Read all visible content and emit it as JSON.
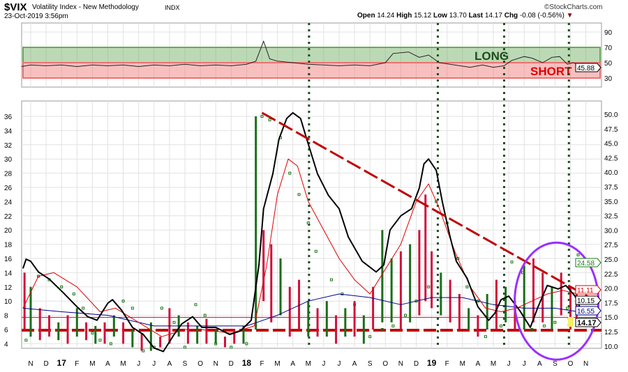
{
  "header": {
    "symbol": "$VIX",
    "name": "Volatility Index - New Methodology",
    "exchange": "INDX",
    "date": "23-Oct-2019 3:56pm",
    "brand": "©StockCharts.com",
    "quote": {
      "open_label": "Open",
      "open": "14.24",
      "high_label": "High",
      "high": "15.12",
      "low_label": "Low",
      "low": "13.70",
      "last_label": "Last",
      "last": "14.17",
      "chg_label": "Chg",
      "chg": "-0.08 (-0.56%)"
    },
    "colors": {
      "down": "#8b0000"
    }
  },
  "chart_data": [
    {
      "type": "line",
      "title": "Indicator panel",
      "yticks": [
        "90",
        "70",
        "50",
        "30"
      ],
      "ylim": [
        25,
        100
      ],
      "bands": [
        {
          "label": "LONG",
          "from": 50,
          "to": 70,
          "color": "#6aaa5a"
        },
        {
          "label": "SHORT",
          "from": 30,
          "to": 50,
          "color": "#f07070"
        }
      ],
      "last_label": "45.88",
      "series": [
        [
          -0.6,
          45
        ],
        [
          0,
          47
        ],
        [
          1,
          46
        ],
        [
          2,
          47
        ],
        [
          3,
          45
        ],
        [
          4,
          47
        ],
        [
          5,
          46
        ],
        [
          6,
          47
        ],
        [
          7,
          45
        ],
        [
          8,
          47
        ],
        [
          9,
          46
        ],
        [
          10,
          48
        ],
        [
          11,
          46
        ],
        [
          12,
          47
        ],
        [
          13,
          46
        ],
        [
          14,
          48
        ],
        [
          14.6,
          52
        ],
        [
          15.1,
          78
        ],
        [
          15.5,
          55
        ],
        [
          16,
          52
        ],
        [
          17,
          50
        ],
        [
          18,
          48
        ],
        [
          19,
          47
        ],
        [
          20,
          46
        ],
        [
          21,
          47
        ],
        [
          22,
          46
        ],
        [
          23,
          50
        ],
        [
          23.5,
          62
        ],
        [
          24.5,
          64
        ],
        [
          25.2,
          57
        ],
        [
          25.8,
          60
        ],
        [
          26.5,
          50
        ],
        [
          27.5,
          47
        ],
        [
          28.5,
          44
        ],
        [
          29.3,
          47
        ],
        [
          30,
          44
        ],
        [
          30.7,
          46
        ],
        [
          31.2,
          53
        ],
        [
          32,
          58
        ],
        [
          32.5,
          56
        ],
        [
          33.2,
          50
        ],
        [
          33.8,
          57
        ],
        [
          34.3,
          58
        ],
        [
          34.8,
          48
        ],
        [
          35.2,
          50
        ],
        [
          35.6,
          46
        ]
      ]
    },
    {
      "type": "line",
      "title": "$VIX price with moving averages and parabolic SAR",
      "x_ticks": [
        "N",
        "D",
        "17",
        "F",
        "M",
        "A",
        "M",
        "J",
        "J",
        "A",
        "S",
        "O",
        "N",
        "D",
        "18",
        "F",
        "M",
        "A",
        "M",
        "J",
        "J",
        "A",
        "S",
        "O",
        "N",
        "D",
        "19",
        "F",
        "M",
        "A",
        "M",
        "J",
        "J",
        "A",
        "S",
        "O",
        "N"
      ],
      "yticks_left": [
        "36",
        "34",
        "32",
        "30",
        "28",
        "26",
        "24",
        "22",
        "20",
        "18",
        "16",
        "14",
        "12",
        "10",
        "8",
        "6",
        "4"
      ],
      "yticks_right": [
        "50.0",
        "47.5",
        "45.0",
        "42.5",
        "40.0",
        "37.5",
        "35.0",
        "32.5",
        "30.0",
        "27.5",
        "25.0",
        "22.5",
        "20.0",
        "17.5",
        "15.0",
        "12.5",
        "10.0"
      ],
      "ylim_left": [
        3,
        37
      ],
      "vlines": [
        18.05,
        26.4,
        30.7,
        34.9
      ],
      "price": [
        [
          -0.5,
          14.6
        ],
        [
          -0.3,
          15.9
        ],
        [
          0,
          15.6
        ],
        [
          0.5,
          14.1
        ],
        [
          1.2,
          13.1
        ],
        [
          2.1,
          11.2
        ],
        [
          3,
          9.2
        ],
        [
          3.7,
          7.8
        ],
        [
          4.3,
          7.3
        ],
        [
          5,
          9.7
        ],
        [
          5.3,
          10.2
        ],
        [
          5.9,
          8.7
        ],
        [
          6.6,
          6.3
        ],
        [
          7.3,
          5.3
        ],
        [
          8,
          3.4
        ],
        [
          8.6,
          2.9
        ],
        [
          9.3,
          5.3
        ],
        [
          9.8,
          6.8
        ],
        [
          10.5,
          7.8
        ],
        [
          11.1,
          6.3
        ],
        [
          12,
          6.3
        ],
        [
          12.9,
          5.3
        ],
        [
          13.6,
          5.8
        ],
        [
          14.3,
          7.3
        ],
        [
          14.8,
          15.1
        ],
        [
          15.1,
          23
        ],
        [
          15.7,
          27.9
        ],
        [
          16.1,
          32.8
        ],
        [
          16.6,
          35.7
        ],
        [
          17,
          36.5
        ],
        [
          17.5,
          35.7
        ],
        [
          17.9,
          32.8
        ],
        [
          18.6,
          27.9
        ],
        [
          19.3,
          24.9
        ],
        [
          20,
          23
        ],
        [
          20.6,
          19
        ],
        [
          21.5,
          15.6
        ],
        [
          22.4,
          14.1
        ],
        [
          22.9,
          15.1
        ],
        [
          23.3,
          20
        ],
        [
          24,
          22
        ],
        [
          24.7,
          23
        ],
        [
          25.2,
          25.9
        ],
        [
          25.5,
          29.3
        ],
        [
          25.8,
          30
        ],
        [
          26.3,
          28.4
        ],
        [
          26.7,
          23.9
        ],
        [
          27.2,
          19
        ],
        [
          27.6,
          15.6
        ],
        [
          28.3,
          13.2
        ],
        [
          29,
          9.2
        ],
        [
          29.7,
          7.3
        ],
        [
          30.1,
          8.3
        ],
        [
          30.5,
          10.2
        ],
        [
          31,
          10.7
        ],
        [
          31.7,
          8.7
        ],
        [
          32.4,
          6.3
        ],
        [
          32.9,
          9.2
        ],
        [
          33.5,
          12.2
        ],
        [
          34.2,
          11.7
        ],
        [
          34.7,
          12.2
        ],
        [
          35.3,
          10.7
        ],
        [
          35.7,
          8.7
        ]
      ],
      "ma_red": [
        [
          -0.5,
          9
        ],
        [
          0.5,
          13.5
        ],
        [
          1.5,
          14
        ],
        [
          3,
          12
        ],
        [
          4.5,
          8.5
        ],
        [
          5.5,
          9
        ],
        [
          7,
          7
        ],
        [
          8.5,
          5
        ],
        [
          10,
          6
        ],
        [
          11,
          6
        ],
        [
          13,
          5.5
        ],
        [
          14.5,
          6.5
        ],
        [
          15.3,
          15
        ],
        [
          16,
          25
        ],
        [
          16.7,
          30
        ],
        [
          17.3,
          29
        ],
        [
          18,
          24
        ],
        [
          19,
          20
        ],
        [
          20,
          16
        ],
        [
          21,
          13
        ],
        [
          22,
          11
        ],
        [
          23,
          14.5
        ],
        [
          24,
          18
        ],
        [
          25,
          24
        ],
        [
          25.8,
          26.5
        ],
        [
          26.5,
          23
        ],
        [
          27.5,
          17
        ],
        [
          28.5,
          12
        ],
        [
          29.5,
          9
        ],
        [
          30.5,
          8.5
        ],
        [
          31.5,
          9
        ],
        [
          32.5,
          10
        ],
        [
          33.5,
          11
        ],
        [
          34.5,
          11.5
        ],
        [
          35.5,
          11
        ]
      ],
      "ma_blue": [
        [
          -0.5,
          9
        ],
        [
          2,
          8.5
        ],
        [
          5,
          8
        ],
        [
          8,
          6.5
        ],
        [
          11,
          6.5
        ],
        [
          14,
          6.5
        ],
        [
          16,
          8
        ],
        [
          18,
          10
        ],
        [
          20,
          11
        ],
        [
          22,
          10.5
        ],
        [
          24,
          9.5
        ],
        [
          26,
          10.5
        ],
        [
          28,
          10.5
        ],
        [
          30,
          9.5
        ],
        [
          32,
          9
        ],
        [
          34,
          9
        ],
        [
          35.5,
          8.5
        ]
      ],
      "sar": [
        [
          -0.3,
          4.5
        ],
        [
          0.5,
          13.5
        ],
        [
          1.2,
          13
        ],
        [
          2,
          12
        ],
        [
          2.8,
          11
        ],
        [
          3.4,
          9
        ],
        [
          4,
          5.5
        ],
        [
          4.5,
          4.5
        ],
        [
          5.2,
          4
        ],
        [
          6,
          10
        ],
        [
          6.6,
          9
        ],
        [
          7.3,
          3
        ],
        [
          8,
          3.5
        ],
        [
          8.5,
          9
        ],
        [
          9.3,
          7
        ],
        [
          10,
          3.5
        ],
        [
          10.7,
          9.5
        ],
        [
          11.3,
          8
        ],
        [
          12,
          4
        ],
        [
          13,
          3.5
        ],
        [
          14,
          4
        ],
        [
          15,
          36
        ],
        [
          15.5,
          35.5
        ],
        [
          16.2,
          33
        ],
        [
          16.8,
          28
        ],
        [
          17.4,
          25
        ],
        [
          18,
          21
        ],
        [
          18.5,
          17
        ],
        [
          19.5,
          13
        ],
        [
          20.2,
          11
        ],
        [
          21,
          9.5
        ],
        [
          22,
          5
        ],
        [
          22.8,
          6
        ],
        [
          23.5,
          6.5
        ],
        [
          24.3,
          8
        ],
        [
          25,
          10
        ],
        [
          25.8,
          12
        ],
        [
          26.3,
          24
        ],
        [
          27,
          21
        ],
        [
          27.7,
          16
        ],
        [
          28.3,
          12
        ],
        [
          29,
          10
        ],
        [
          29.5,
          5
        ],
        [
          30.5,
          6.5
        ],
        [
          31.2,
          15.5
        ],
        [
          31.9,
          14
        ],
        [
          32.5,
          6
        ],
        [
          33.3,
          6.5
        ],
        [
          34,
          7
        ],
        [
          34.8,
          9
        ],
        [
          35.5,
          16.5
        ]
      ],
      "bars": [
        [
          -0.4,
          6,
          14,
          "r"
        ],
        [
          0,
          5,
          12,
          "g"
        ],
        [
          0.6,
          4.5,
          9,
          "r"
        ],
        [
          1.2,
          5,
          8,
          "r"
        ],
        [
          1.8,
          4.5,
          7,
          "g"
        ],
        [
          2.4,
          4,
          8,
          "r"
        ],
        [
          3,
          5,
          9,
          "g"
        ],
        [
          3.6,
          4.5,
          7,
          "r"
        ],
        [
          4.2,
          4,
          6.5,
          "g"
        ],
        [
          4.8,
          4,
          7,
          "r"
        ],
        [
          5.4,
          5,
          8,
          "g"
        ],
        [
          6,
          4,
          7,
          "r"
        ],
        [
          6.6,
          3.5,
          6,
          "g"
        ],
        [
          7.2,
          3,
          5.5,
          "r"
        ],
        [
          7.8,
          3,
          7,
          "g"
        ],
        [
          8.4,
          3.5,
          5,
          "r"
        ],
        [
          9,
          4,
          9,
          "r"
        ],
        [
          9.6,
          5,
          8,
          "g"
        ],
        [
          10.2,
          4,
          7,
          "r"
        ],
        [
          10.8,
          4,
          6.5,
          "g"
        ],
        [
          11.4,
          4,
          7.5,
          "r"
        ],
        [
          12,
          4,
          6,
          "g"
        ],
        [
          12.6,
          3.5,
          5,
          "r"
        ],
        [
          13.2,
          4,
          6,
          "r"
        ],
        [
          13.8,
          4,
          6.5,
          "g"
        ],
        [
          14.6,
          6,
          36,
          "g"
        ],
        [
          15.1,
          10,
          20,
          "r"
        ],
        [
          15.6,
          7,
          18,
          "r"
        ],
        [
          16.2,
          8,
          16,
          "g"
        ],
        [
          16.8,
          5,
          12,
          "r"
        ],
        [
          17.4,
          6,
          13,
          "r"
        ],
        [
          18,
          5,
          10,
          "g"
        ],
        [
          18.6,
          5,
          9,
          "r"
        ],
        [
          19.2,
          5,
          10,
          "g"
        ],
        [
          19.8,
          4,
          8,
          "r"
        ],
        [
          20.4,
          5,
          9,
          "g"
        ],
        [
          21,
          5,
          10,
          "r"
        ],
        [
          21.6,
          4,
          8,
          "g"
        ],
        [
          22.2,
          6,
          12,
          "r"
        ],
        [
          22.8,
          7,
          20,
          "g"
        ],
        [
          23.4,
          7,
          16,
          "g"
        ],
        [
          24,
          6,
          17,
          "r"
        ],
        [
          24.6,
          7,
          18,
          "g"
        ],
        [
          25.2,
          8,
          20,
          "r"
        ],
        [
          25.6,
          10,
          25,
          "r"
        ],
        [
          26,
          9,
          17,
          "r"
        ],
        [
          26.6,
          8,
          14,
          "g"
        ],
        [
          27.2,
          7,
          13,
          "r"
        ],
        [
          27.8,
          6,
          11,
          "r"
        ],
        [
          28.4,
          6,
          9,
          "g"
        ],
        [
          29,
          5,
          8,
          "r"
        ],
        [
          29.6,
          6,
          11,
          "g"
        ],
        [
          30.2,
          6,
          13,
          "r"
        ],
        [
          30.8,
          7,
          12,
          "g"
        ],
        [
          31.4,
          6,
          10,
          "r"
        ],
        [
          32,
          6,
          15,
          "g"
        ],
        [
          32.6,
          7,
          16,
          "r"
        ],
        [
          33.2,
          7,
          14,
          "r"
        ],
        [
          33.8,
          6,
          12,
          "g"
        ],
        [
          34.4,
          8,
          14,
          "r"
        ],
        [
          35,
          6,
          12,
          "r"
        ],
        [
          35.4,
          7,
          11,
          "r"
        ]
      ],
      "trendline": [
        [
          15,
          36.5
        ],
        [
          36.4,
          10.3
        ]
      ],
      "support": 5.9,
      "resist": 7.7,
      "highlight_ellipse": {
        "cx": 34.1,
        "cy": 10,
        "color": "#9b30ff"
      },
      "last_labels": [
        {
          "value": "24.58",
          "color": "#1a7a1a"
        },
        {
          "value": "11.11",
          "color": "#e00000"
        },
        {
          "value": "10.15",
          "color": "#000000"
        },
        {
          "value": "16.55",
          "color": "#00008b"
        },
        {
          "value": "14.17",
          "color": "#000000"
        }
      ]
    }
  ]
}
